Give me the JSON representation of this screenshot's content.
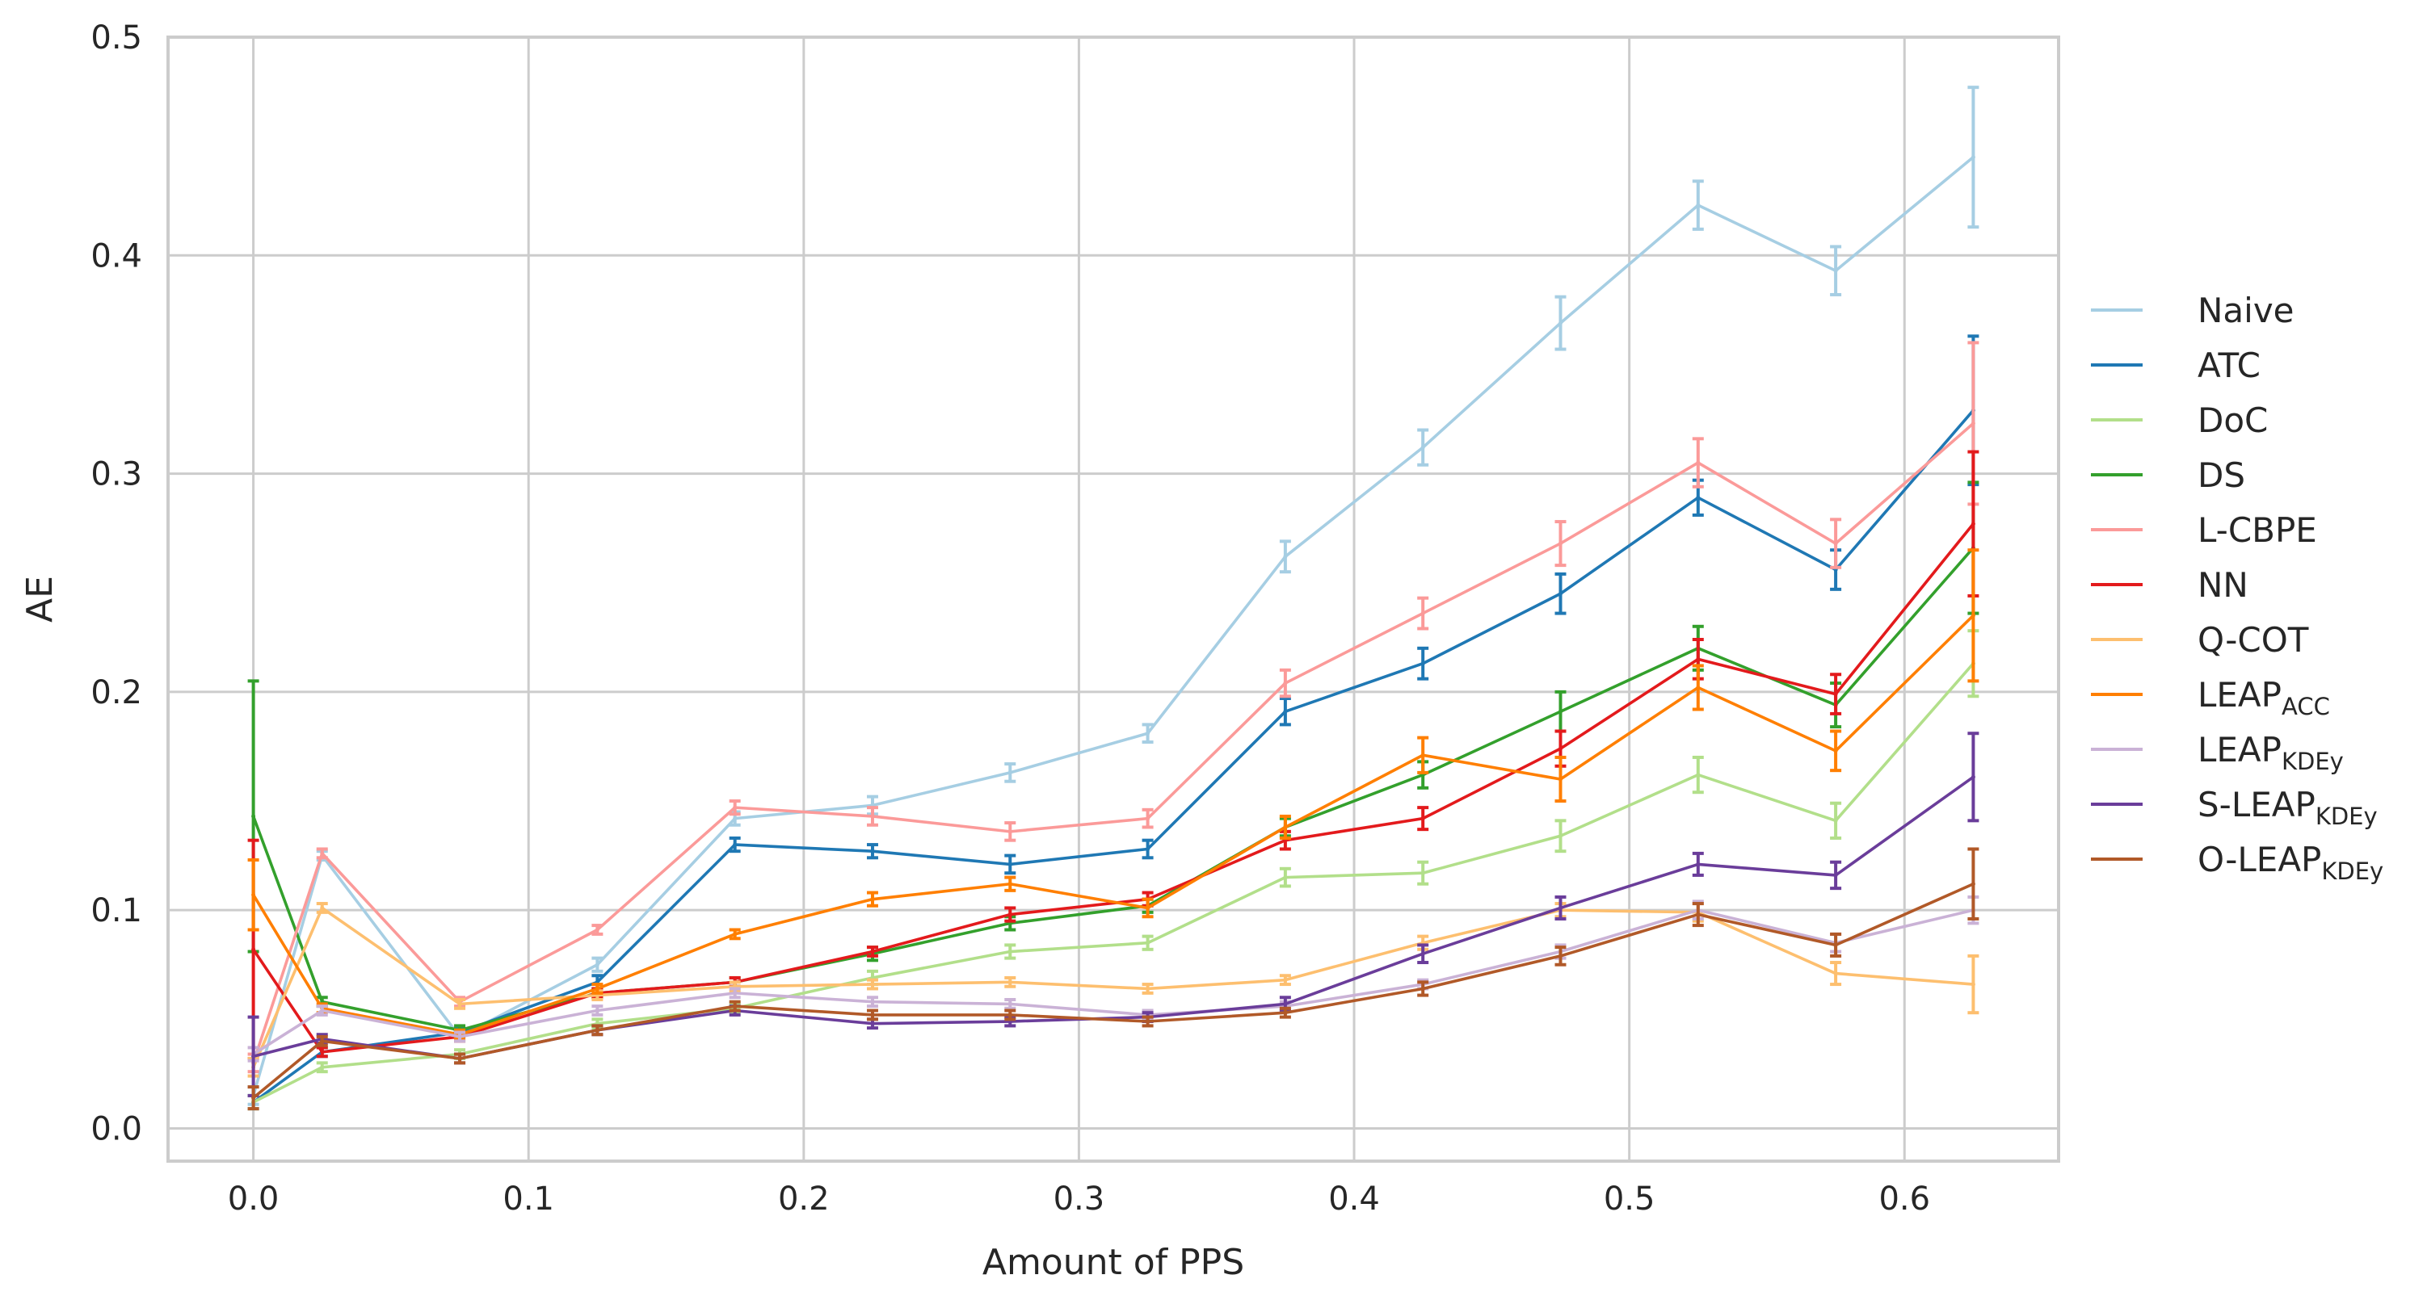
{
  "chart_data": {
    "type": "line",
    "title": "",
    "xlabel": "Amount of PPS",
    "ylabel": "AE",
    "xlim": [
      -0.031,
      0.656
    ],
    "ylim": [
      -0.015,
      0.5
    ],
    "xticks": [
      0.0,
      0.1,
      0.2,
      0.3,
      0.4,
      0.5,
      0.6
    ],
    "xtick_labels": [
      "0.0",
      "0.1",
      "0.2",
      "0.3",
      "0.4",
      "0.5",
      "0.6"
    ],
    "yticks": [
      0.0,
      0.1,
      0.2,
      0.3,
      0.4,
      0.5
    ],
    "ytick_labels": [
      "0.0",
      "0.1",
      "0.2",
      "0.3",
      "0.4",
      "0.5"
    ],
    "grid": true,
    "legend_position": "right, outside plot",
    "x": [
      0.0,
      0.025,
      0.075,
      0.125,
      0.175,
      0.225,
      0.275,
      0.325,
      0.375,
      0.425,
      0.475,
      0.525,
      0.575,
      0.625
    ],
    "series": [
      {
        "name": "Naive",
        "label_main": "Naive",
        "label_sub": "",
        "color": "#a6cee3",
        "values": [
          0.015,
          0.125,
          0.042,
          0.075,
          0.142,
          0.148,
          0.163,
          0.181,
          0.262,
          0.312,
          0.369,
          0.423,
          0.393,
          0.445
        ],
        "errors": [
          0.004,
          0.002,
          0.002,
          0.003,
          0.003,
          0.004,
          0.004,
          0.004,
          0.007,
          0.008,
          0.012,
          0.011,
          0.011,
          0.032
        ]
      },
      {
        "name": "ATC",
        "label_main": "ATC",
        "label_sub": "",
        "color": "#1f78b4",
        "values": [
          0.012,
          0.035,
          0.044,
          0.067,
          0.13,
          0.127,
          0.121,
          0.128,
          0.191,
          0.213,
          0.245,
          0.289,
          0.256,
          0.329
        ],
        "errors": [
          0.003,
          0.002,
          0.002,
          0.003,
          0.003,
          0.003,
          0.004,
          0.004,
          0.006,
          0.007,
          0.009,
          0.008,
          0.009,
          0.034
        ]
      },
      {
        "name": "DoC",
        "label_main": "DoC",
        "label_sub": "",
        "color": "#b2df8a",
        "values": [
          0.012,
          0.028,
          0.034,
          0.048,
          0.055,
          0.069,
          0.081,
          0.085,
          0.115,
          0.117,
          0.134,
          0.162,
          0.141,
          0.213
        ],
        "errors": [
          0.003,
          0.002,
          0.002,
          0.002,
          0.002,
          0.003,
          0.003,
          0.003,
          0.004,
          0.005,
          0.007,
          0.008,
          0.008,
          0.015
        ]
      },
      {
        "name": "DS",
        "label_main": "DS",
        "label_sub": "",
        "color": "#33a02c",
        "values": [
          0.143,
          0.058,
          0.045,
          0.062,
          0.067,
          0.08,
          0.094,
          0.102,
          0.138,
          0.162,
          0.191,
          0.22,
          0.194,
          0.266
        ],
        "errors": [
          0.062,
          0.002,
          0.002,
          0.002,
          0.002,
          0.003,
          0.003,
          0.003,
          0.004,
          0.006,
          0.009,
          0.01,
          0.01,
          0.03
        ]
      },
      {
        "name": "L-CBPE",
        "label_main": "L-CBPE",
        "label_sub": "",
        "color": "#fb9a99",
        "values": [
          0.03,
          0.126,
          0.058,
          0.091,
          0.147,
          0.143,
          0.136,
          0.142,
          0.204,
          0.236,
          0.268,
          0.305,
          0.268,
          0.323
        ],
        "errors": [
          0.004,
          0.002,
          0.002,
          0.002,
          0.003,
          0.004,
          0.004,
          0.004,
          0.006,
          0.007,
          0.01,
          0.011,
          0.011,
          0.037
        ]
      },
      {
        "name": "NN",
        "label_main": "NN",
        "label_sub": "",
        "color": "#e31a1c",
        "values": [
          0.082,
          0.035,
          0.042,
          0.062,
          0.067,
          0.081,
          0.098,
          0.105,
          0.132,
          0.142,
          0.174,
          0.215,
          0.199,
          0.277
        ],
        "errors": [
          0.05,
          0.002,
          0.002,
          0.002,
          0.002,
          0.002,
          0.003,
          0.003,
          0.004,
          0.005,
          0.008,
          0.009,
          0.009,
          0.033
        ]
      },
      {
        "name": "Q-COT",
        "label_main": "Q-COT",
        "label_sub": "",
        "color": "#fdbf6f",
        "values": [
          0.028,
          0.101,
          0.057,
          0.061,
          0.065,
          0.066,
          0.067,
          0.064,
          0.068,
          0.085,
          0.1,
          0.099,
          0.071,
          0.066
        ],
        "errors": [
          0.004,
          0.002,
          0.002,
          0.002,
          0.002,
          0.002,
          0.002,
          0.002,
          0.002,
          0.003,
          0.003,
          0.004,
          0.005,
          0.013
        ]
      },
      {
        "name": "LEAP_ACC",
        "label_main": "LEAP",
        "label_sub": "ACC",
        "color": "#ff7f00",
        "values": [
          0.107,
          0.055,
          0.043,
          0.064,
          0.089,
          0.105,
          0.112,
          0.101,
          0.138,
          0.171,
          0.16,
          0.202,
          0.173,
          0.235
        ],
        "errors": [
          0.016,
          0.002,
          0.002,
          0.002,
          0.002,
          0.003,
          0.003,
          0.004,
          0.005,
          0.008,
          0.01,
          0.01,
          0.009,
          0.03
        ]
      },
      {
        "name": "LEAP_KDEy",
        "label_main": "LEAP",
        "label_sub": "KDEy",
        "color": "#cab2d6",
        "values": [
          0.034,
          0.054,
          0.042,
          0.054,
          0.062,
          0.058,
          0.057,
          0.052,
          0.056,
          0.066,
          0.081,
          0.1,
          0.085,
          0.1
        ],
        "errors": [
          0.003,
          0.002,
          0.002,
          0.002,
          0.002,
          0.002,
          0.002,
          0.002,
          0.002,
          0.002,
          0.003,
          0.004,
          0.004,
          0.006
        ]
      },
      {
        "name": "S-LEAP_KDEy",
        "label_main": "S-LEAP",
        "label_sub": "KDEy",
        "color": "#6a3d9a",
        "values": [
          0.033,
          0.041,
          0.032,
          0.045,
          0.054,
          0.048,
          0.049,
          0.051,
          0.057,
          0.08,
          0.101,
          0.121,
          0.116,
          0.161
        ],
        "errors": [
          0.018,
          0.002,
          0.002,
          0.002,
          0.002,
          0.002,
          0.002,
          0.002,
          0.003,
          0.004,
          0.005,
          0.005,
          0.006,
          0.02
        ]
      },
      {
        "name": "O-LEAP_KDEy",
        "label_main": "O-LEAP",
        "label_sub": "KDEy",
        "color": "#b15928",
        "values": [
          0.014,
          0.04,
          0.032,
          0.045,
          0.056,
          0.052,
          0.052,
          0.049,
          0.053,
          0.064,
          0.079,
          0.098,
          0.084,
          0.112
        ],
        "errors": [
          0.005,
          0.002,
          0.002,
          0.002,
          0.002,
          0.002,
          0.002,
          0.002,
          0.002,
          0.003,
          0.004,
          0.005,
          0.005,
          0.016
        ]
      }
    ]
  }
}
